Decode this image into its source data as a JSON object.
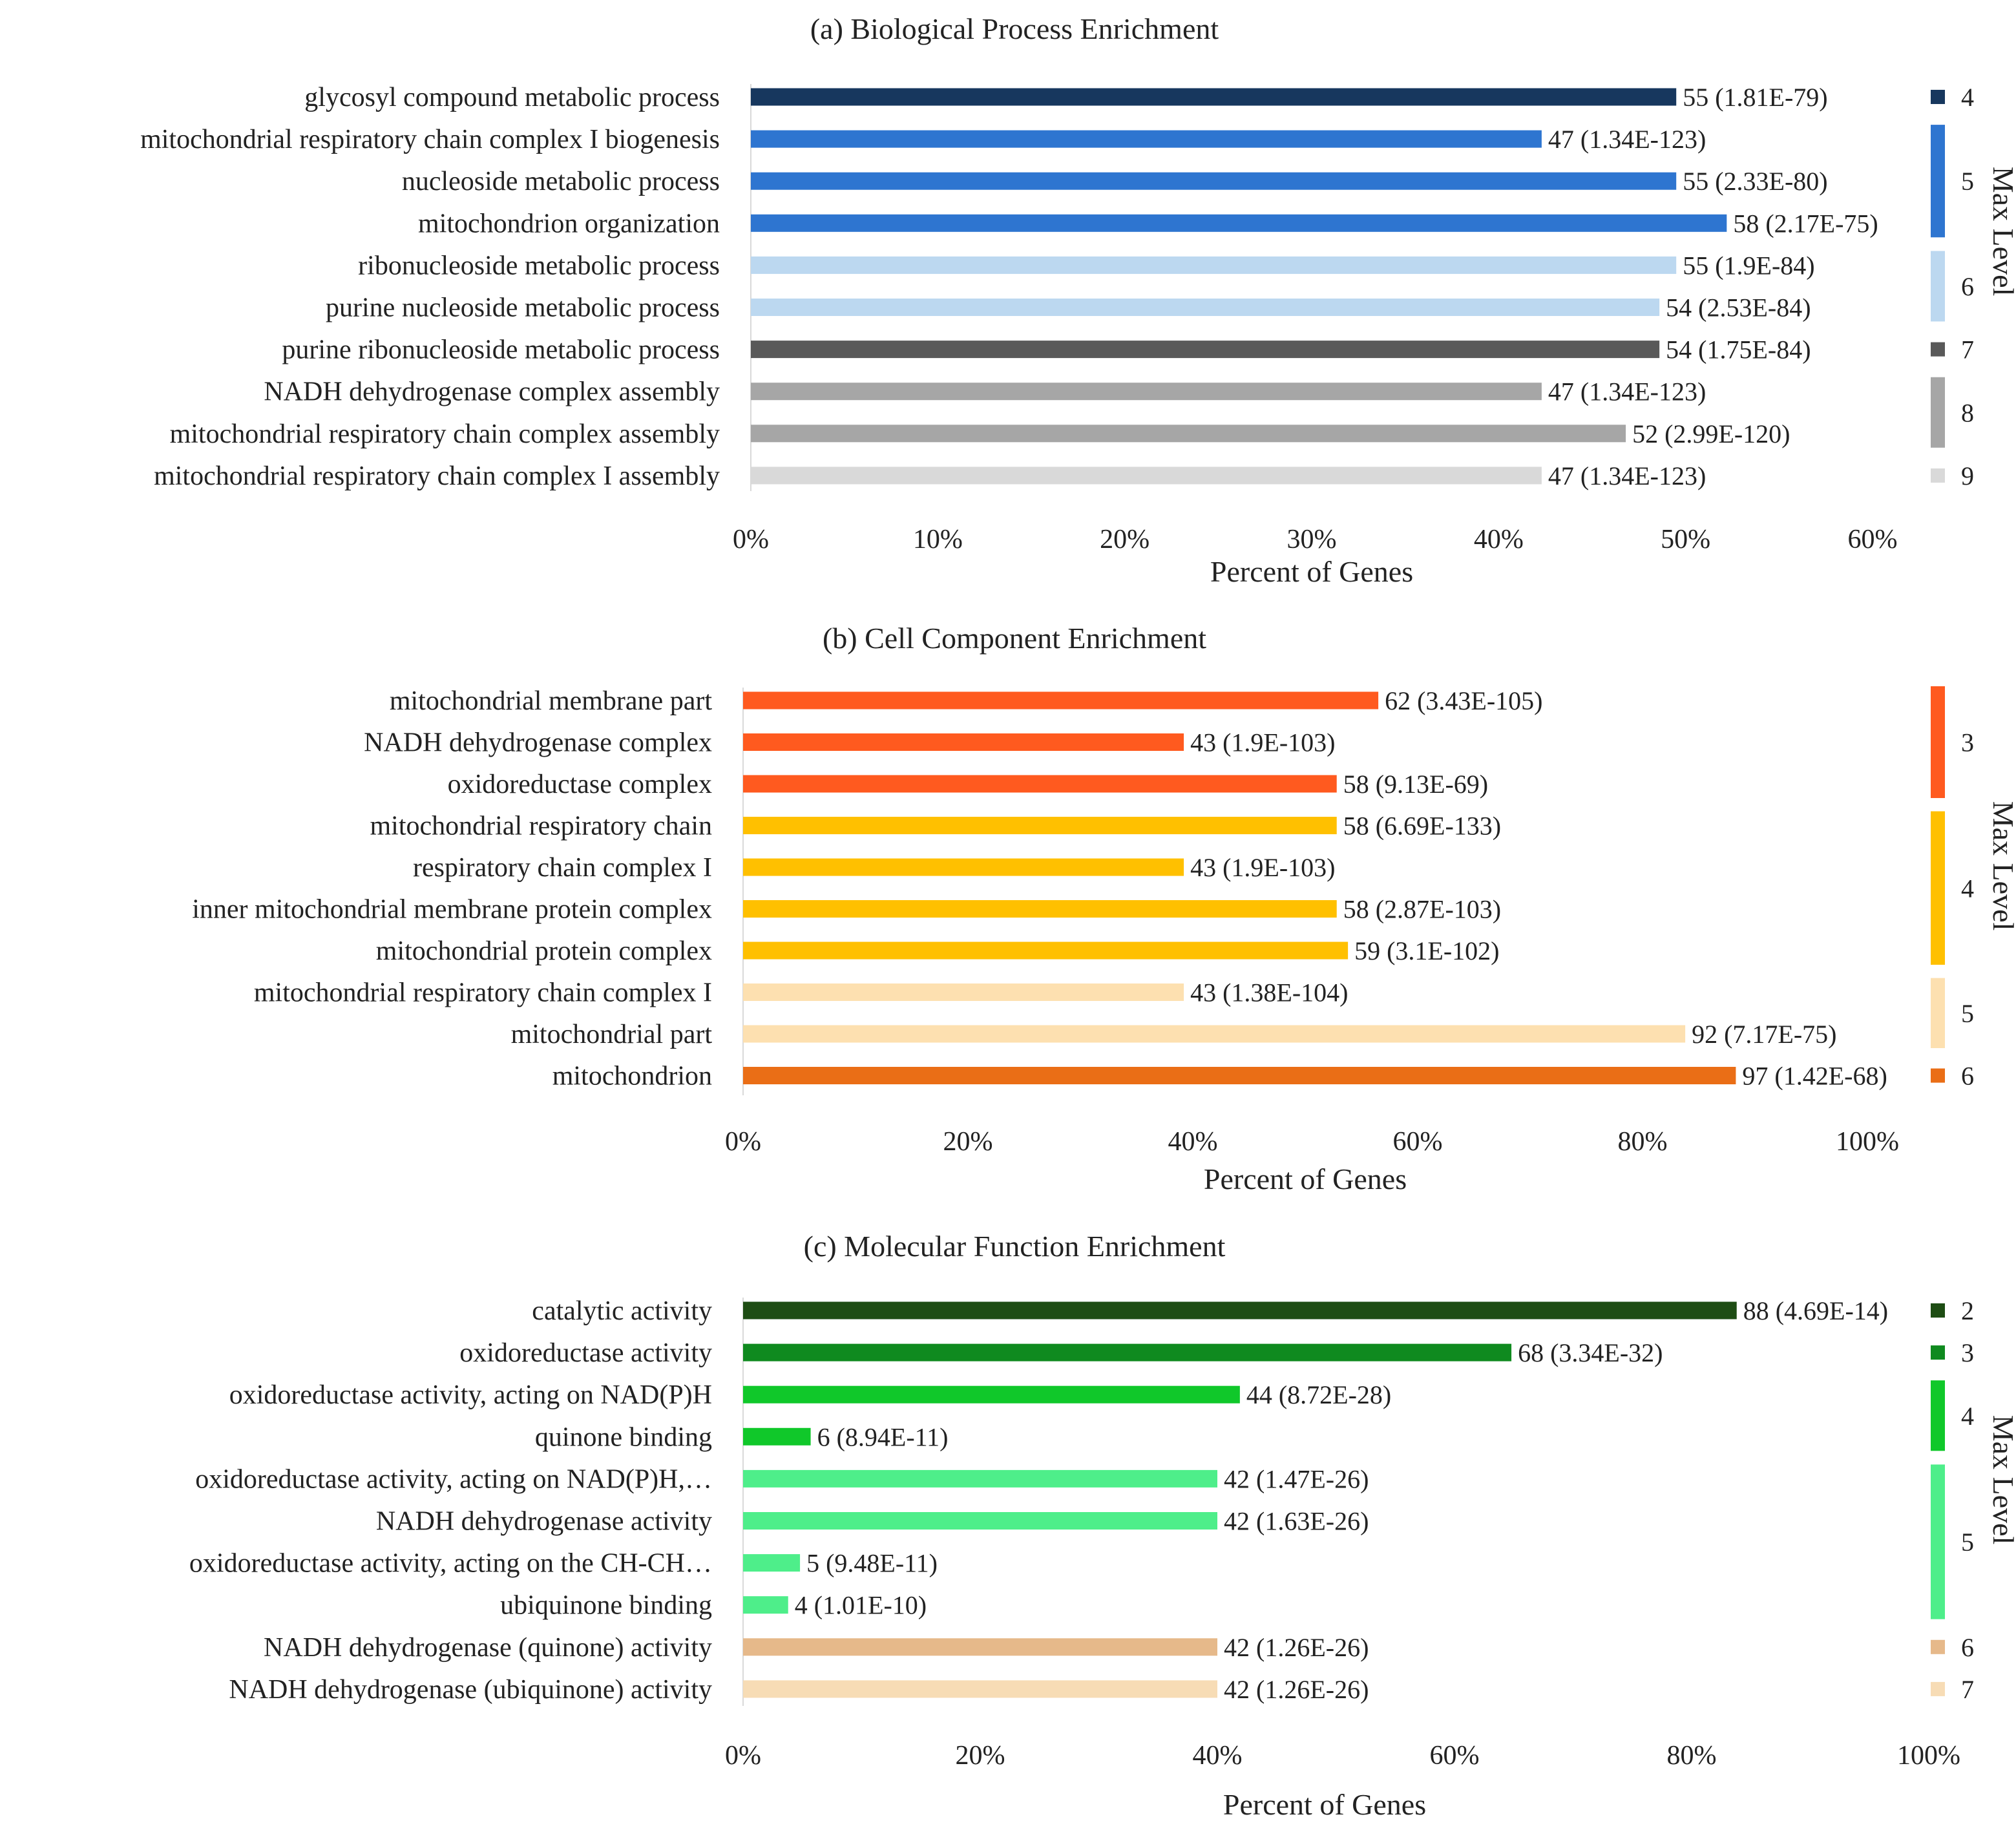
{
  "chart_data": [
    {
      "type": "bar",
      "orientation": "horizontal",
      "title": "(a) Biological Process Enrichment",
      "xlabel": "Percent of Genes",
      "ylabel": "",
      "xlim": [
        0,
        60
      ],
      "ticks": [
        "0%",
        "10%",
        "20%",
        "30%",
        "40%",
        "50%",
        "60%"
      ],
      "legend_title": "Max Level",
      "legend_position": "right",
      "categories": [
        "glycosyl compound metabolic process",
        "mitochondrial respiratory chain complex I biogenesis",
        "nucleoside metabolic process",
        "mitochondrion organization",
        "ribonucleoside metabolic process",
        "purine nucleoside metabolic process",
        "purine ribonucleoside metabolic process",
        "NADH dehydrogenase complex assembly",
        "mitochondrial respiratory chain complex assembly",
        "mitochondrial respiratory chain complex I assembly"
      ],
      "values": [
        49.5,
        42.3,
        49.5,
        52.2,
        49.5,
        48.6,
        48.6,
        42.3,
        46.8,
        42.3
      ],
      "value_labels": [
        "55 (1.81E-79)",
        "47 (1.34E-123)",
        "55 (2.33E-80)",
        "58 (2.17E-75)",
        "55 (1.9E-84)",
        "54 (2.53E-84)",
        "54 (1.75E-84)",
        "47 (1.34E-123)",
        "52 (2.99E-120)",
        "47 (1.34E-123)"
      ],
      "bar_levels": [
        "4",
        "5",
        "5",
        "5",
        "6",
        "6",
        "7",
        "8",
        "8",
        "9"
      ],
      "levels": [
        {
          "label": "4",
          "color": "#17375e"
        },
        {
          "label": "5",
          "color": "#2e75d0"
        },
        {
          "label": "6",
          "color": "#bcd8f0"
        },
        {
          "label": "7",
          "color": "#595959"
        },
        {
          "label": "8",
          "color": "#a6a6a6"
        },
        {
          "label": "9",
          "color": "#d9d9d9"
        }
      ]
    },
    {
      "type": "bar",
      "orientation": "horizontal",
      "title": "(b) Cell Component Enrichment",
      "xlabel": "Percent of Genes",
      "ylabel": "",
      "xlim": [
        0,
        100
      ],
      "ticks": [
        "0%",
        "20%",
        "40%",
        "60%",
        "80%",
        "100%"
      ],
      "legend_title": "Max Level",
      "legend_position": "right",
      "categories": [
        "mitochondrial membrane part",
        "NADH dehydrogenase complex",
        "oxidoreductase complex",
        "mitochondrial respiratory chain",
        "respiratory chain complex I",
        "inner mitochondrial membrane protein complex",
        "mitochondrial protein complex",
        "mitochondrial respiratory chain complex I",
        "mitochondrial part",
        "mitochondrion"
      ],
      "values": [
        56.5,
        39.2,
        52.8,
        52.8,
        39.2,
        52.8,
        53.8,
        39.2,
        83.8,
        88.3
      ],
      "value_labels": [
        "62 (3.43E-105)",
        "43 (1.9E-103)",
        "58 (9.13E-69)",
        "58 (6.69E-133)",
        "43 (1.9E-103)",
        "58 (2.87E-103)",
        "59 (3.1E-102)",
        "43 (1.38E-104)",
        "92 (7.17E-75)",
        "97 (1.42E-68)"
      ],
      "bar_levels": [
        "3",
        "3",
        "3",
        "4",
        "4",
        "4",
        "4",
        "5",
        "5",
        "6"
      ],
      "levels": [
        {
          "label": "3",
          "color": "#ff5a1f"
        },
        {
          "label": "4",
          "color": "#ffc000"
        },
        {
          "label": "5",
          "color": "#fde0b0"
        },
        {
          "label": "6",
          "color": "#ea6e16"
        }
      ]
    },
    {
      "type": "bar",
      "orientation": "horizontal",
      "title": "(c) Molecular Function Enrichment",
      "xlabel": "Percent of Genes",
      "ylabel": "",
      "xlim": [
        0,
        100
      ],
      "ticks": [
        "0%",
        "20%",
        "40%",
        "60%",
        "80%",
        "100%"
      ],
      "legend_title": "Max Level",
      "legend_position": "right",
      "categories": [
        "catalytic activity",
        "oxidoreductase activity",
        "oxidoreductase activity, acting on NAD(P)H",
        "quinone binding",
        "oxidoreductase activity, acting on NAD(P)H,…",
        "NADH dehydrogenase activity",
        "oxidoreductase activity, acting on the CH-CH…",
        "ubiquinone binding",
        "NADH dehydrogenase (quinone) activity",
        "NADH dehydrogenase (ubiquinone) activity"
      ],
      "values": [
        83.8,
        64.8,
        41.9,
        5.7,
        40.0,
        40.0,
        4.8,
        3.8,
        40.0,
        40.0
      ],
      "value_labels": [
        "88 (4.69E-14)",
        "68 (3.34E-32)",
        "44 (8.72E-28)",
        "6 (8.94E-11)",
        "42 (1.47E-26)",
        "42 (1.63E-26)",
        "5 (9.48E-11)",
        "4 (1.01E-10)",
        "42 (1.26E-26)",
        "42 (1.26E-26)"
      ],
      "bar_levels": [
        "2",
        "3",
        "4",
        "4",
        "5",
        "5",
        "5",
        "5",
        "6",
        "7"
      ],
      "levels": [
        {
          "label": "2",
          "color": "#1e4d14"
        },
        {
          "label": "3",
          "color": "#0f8a1f"
        },
        {
          "label": "4",
          "color": "#10c82a"
        },
        {
          "label": "5",
          "color": "#4eee8a"
        },
        {
          "label": "6",
          "color": "#e6b98a"
        },
        {
          "label": "7",
          "color": "#f7dcb5"
        }
      ]
    }
  ]
}
